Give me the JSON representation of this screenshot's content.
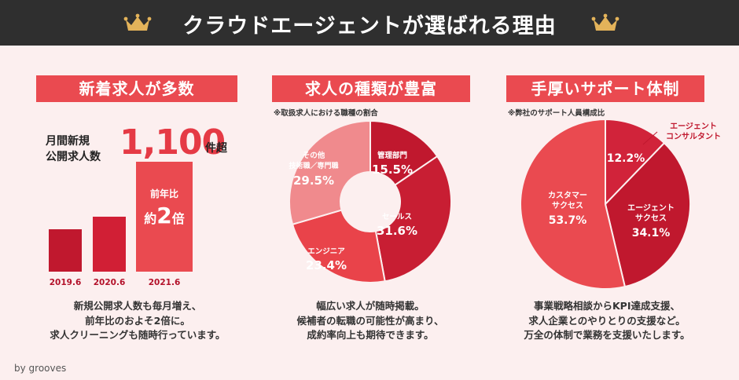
{
  "header": {
    "title": "クラウドエージェントが選ばれる理由"
  },
  "panel1": {
    "title": "新着求人が多数",
    "metric_label_line1": "月間新規",
    "metric_label_line2": "公開求人数",
    "metric_value": "1,100",
    "metric_unit": "件超",
    "yoy_label": "前年比",
    "yoy_prefix": "約",
    "yoy_value": "2",
    "yoy_suffix": "倍",
    "description": [
      "新規公開求人数も毎月増え、",
      "前年比のおよそ2倍に。",
      "求人クリーニングも随時行っています。"
    ]
  },
  "panel2": {
    "title": "求人の種類が豊富",
    "note": "※取扱求人における職種の割合",
    "description": [
      "幅広い求人が随時掲載。",
      "候補者の転職の可能性が高まり、",
      "成約率向上も期待できます。"
    ]
  },
  "panel3": {
    "title": "手厚いサポート体制",
    "note": "※弊社のサポート人員構成比",
    "description": [
      "事業戦略相談からKPI達成支援、",
      "求人企業とのやりとりの支援など。",
      "万全の体制で業務を支援いたします。"
    ]
  },
  "footer": {
    "brand": "by grooves"
  },
  "colors": {
    "accent": "#ea4a50",
    "dark_red": "#c0182e",
    "light_red": "#f08a8d",
    "header_bg": "#2f2f2f",
    "background": "#fcefef"
  },
  "chart_data": [
    {
      "type": "bar",
      "title": "月間新規公開求人数",
      "categories": [
        "2019.6",
        "2020.6",
        "2021.6"
      ],
      "values": [
        1.0,
        1.3,
        2.6
      ],
      "ylim": [
        0,
        2.6
      ]
    },
    {
      "type": "pie",
      "donut": true,
      "title": "求人の種類が豊富",
      "slices": [
        {
          "label": "管理部門",
          "value": 15.5,
          "value_text": "15.5%",
          "color": "#c0182e"
        },
        {
          "label": "セールス",
          "value": 31.6,
          "value_text": "31.6%",
          "color": "#c81e33"
        },
        {
          "label": "エンジニア",
          "value": 23.4,
          "value_text": "23.4%",
          "color": "#e9434a"
        },
        {
          "label": "その他技術職／専門職",
          "label_line1": "その他",
          "label_line2": "技術職／専門職",
          "value": 29.5,
          "value_text": "29.5%",
          "color": "#f08a8d"
        }
      ]
    },
    {
      "type": "pie",
      "title": "手厚いサポート体制",
      "slices": [
        {
          "label": "エージェントコンサルタント",
          "label_line1": "エージェント",
          "label_line2": "コンサルタント",
          "value": 12.2,
          "value_text": "12.2%",
          "color": "#d1233a"
        },
        {
          "label": "エージェントサクセス",
          "label_line1": "エージェント",
          "label_line2": "サクセス",
          "value": 34.1,
          "value_text": "34.1%",
          "color": "#c0182e"
        },
        {
          "label": "カスタマーサクセス",
          "label_line1": "カスタマー",
          "label_line2": "サクセス",
          "value": 53.7,
          "value_text": "53.7%",
          "color": "#ea4a50"
        }
      ]
    }
  ]
}
